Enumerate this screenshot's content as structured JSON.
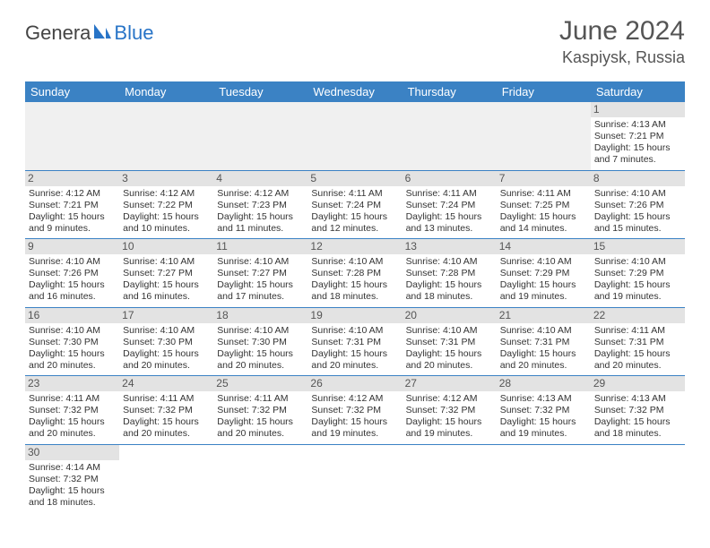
{
  "logo": {
    "part1": "Genera",
    "part2": "Blue"
  },
  "title": "June 2024",
  "location": "Kaspiysk, Russia",
  "colors": {
    "header_bg": "#3b82c4",
    "header_text": "#ffffff",
    "daynum_bg": "#e3e3e3",
    "row_divider": "#3b82c4",
    "logo_blue": "#2874c7"
  },
  "weekdays": [
    "Sunday",
    "Monday",
    "Tuesday",
    "Wednesday",
    "Thursday",
    "Friday",
    "Saturday"
  ],
  "weeks": [
    [
      null,
      null,
      null,
      null,
      null,
      null,
      {
        "n": "1",
        "sr": "Sunrise: 4:13 AM",
        "ss": "Sunset: 7:21 PM",
        "dl": "Daylight: 15 hours and 7 minutes."
      }
    ],
    [
      {
        "n": "2",
        "sr": "Sunrise: 4:12 AM",
        "ss": "Sunset: 7:21 PM",
        "dl": "Daylight: 15 hours and 9 minutes."
      },
      {
        "n": "3",
        "sr": "Sunrise: 4:12 AM",
        "ss": "Sunset: 7:22 PM",
        "dl": "Daylight: 15 hours and 10 minutes."
      },
      {
        "n": "4",
        "sr": "Sunrise: 4:12 AM",
        "ss": "Sunset: 7:23 PM",
        "dl": "Daylight: 15 hours and 11 minutes."
      },
      {
        "n": "5",
        "sr": "Sunrise: 4:11 AM",
        "ss": "Sunset: 7:24 PM",
        "dl": "Daylight: 15 hours and 12 minutes."
      },
      {
        "n": "6",
        "sr": "Sunrise: 4:11 AM",
        "ss": "Sunset: 7:24 PM",
        "dl": "Daylight: 15 hours and 13 minutes."
      },
      {
        "n": "7",
        "sr": "Sunrise: 4:11 AM",
        "ss": "Sunset: 7:25 PM",
        "dl": "Daylight: 15 hours and 14 minutes."
      },
      {
        "n": "8",
        "sr": "Sunrise: 4:10 AM",
        "ss": "Sunset: 7:26 PM",
        "dl": "Daylight: 15 hours and 15 minutes."
      }
    ],
    [
      {
        "n": "9",
        "sr": "Sunrise: 4:10 AM",
        "ss": "Sunset: 7:26 PM",
        "dl": "Daylight: 15 hours and 16 minutes."
      },
      {
        "n": "10",
        "sr": "Sunrise: 4:10 AM",
        "ss": "Sunset: 7:27 PM",
        "dl": "Daylight: 15 hours and 16 minutes."
      },
      {
        "n": "11",
        "sr": "Sunrise: 4:10 AM",
        "ss": "Sunset: 7:27 PM",
        "dl": "Daylight: 15 hours and 17 minutes."
      },
      {
        "n": "12",
        "sr": "Sunrise: 4:10 AM",
        "ss": "Sunset: 7:28 PM",
        "dl": "Daylight: 15 hours and 18 minutes."
      },
      {
        "n": "13",
        "sr": "Sunrise: 4:10 AM",
        "ss": "Sunset: 7:28 PM",
        "dl": "Daylight: 15 hours and 18 minutes."
      },
      {
        "n": "14",
        "sr": "Sunrise: 4:10 AM",
        "ss": "Sunset: 7:29 PM",
        "dl": "Daylight: 15 hours and 19 minutes."
      },
      {
        "n": "15",
        "sr": "Sunrise: 4:10 AM",
        "ss": "Sunset: 7:29 PM",
        "dl": "Daylight: 15 hours and 19 minutes."
      }
    ],
    [
      {
        "n": "16",
        "sr": "Sunrise: 4:10 AM",
        "ss": "Sunset: 7:30 PM",
        "dl": "Daylight: 15 hours and 20 minutes."
      },
      {
        "n": "17",
        "sr": "Sunrise: 4:10 AM",
        "ss": "Sunset: 7:30 PM",
        "dl": "Daylight: 15 hours and 20 minutes."
      },
      {
        "n": "18",
        "sr": "Sunrise: 4:10 AM",
        "ss": "Sunset: 7:30 PM",
        "dl": "Daylight: 15 hours and 20 minutes."
      },
      {
        "n": "19",
        "sr": "Sunrise: 4:10 AM",
        "ss": "Sunset: 7:31 PM",
        "dl": "Daylight: 15 hours and 20 minutes."
      },
      {
        "n": "20",
        "sr": "Sunrise: 4:10 AM",
        "ss": "Sunset: 7:31 PM",
        "dl": "Daylight: 15 hours and 20 minutes."
      },
      {
        "n": "21",
        "sr": "Sunrise: 4:10 AM",
        "ss": "Sunset: 7:31 PM",
        "dl": "Daylight: 15 hours and 20 minutes."
      },
      {
        "n": "22",
        "sr": "Sunrise: 4:11 AM",
        "ss": "Sunset: 7:31 PM",
        "dl": "Daylight: 15 hours and 20 minutes."
      }
    ],
    [
      {
        "n": "23",
        "sr": "Sunrise: 4:11 AM",
        "ss": "Sunset: 7:32 PM",
        "dl": "Daylight: 15 hours and 20 minutes."
      },
      {
        "n": "24",
        "sr": "Sunrise: 4:11 AM",
        "ss": "Sunset: 7:32 PM",
        "dl": "Daylight: 15 hours and 20 minutes."
      },
      {
        "n": "25",
        "sr": "Sunrise: 4:11 AM",
        "ss": "Sunset: 7:32 PM",
        "dl": "Daylight: 15 hours and 20 minutes."
      },
      {
        "n": "26",
        "sr": "Sunrise: 4:12 AM",
        "ss": "Sunset: 7:32 PM",
        "dl": "Daylight: 15 hours and 19 minutes."
      },
      {
        "n": "27",
        "sr": "Sunrise: 4:12 AM",
        "ss": "Sunset: 7:32 PM",
        "dl": "Daylight: 15 hours and 19 minutes."
      },
      {
        "n": "28",
        "sr": "Sunrise: 4:13 AM",
        "ss": "Sunset: 7:32 PM",
        "dl": "Daylight: 15 hours and 19 minutes."
      },
      {
        "n": "29",
        "sr": "Sunrise: 4:13 AM",
        "ss": "Sunset: 7:32 PM",
        "dl": "Daylight: 15 hours and 18 minutes."
      }
    ],
    [
      {
        "n": "30",
        "sr": "Sunrise: 4:14 AM",
        "ss": "Sunset: 7:32 PM",
        "dl": "Daylight: 15 hours and 18 minutes."
      },
      null,
      null,
      null,
      null,
      null,
      null
    ]
  ]
}
